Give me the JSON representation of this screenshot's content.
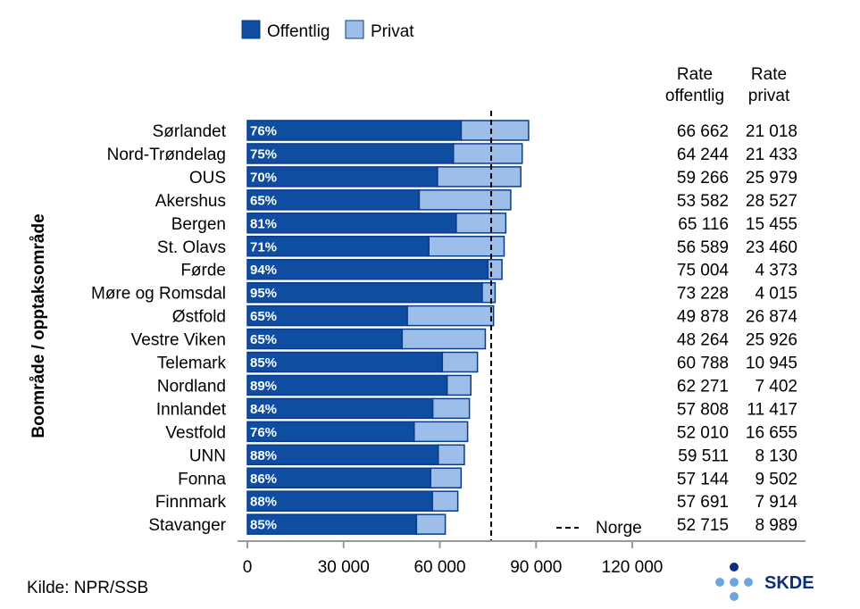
{
  "chart_data": {
    "type": "bar",
    "orientation": "horizontal",
    "stacked": true,
    "ylabel": "Boområde / opptaksområde",
    "source": "Kilde: NPR/SSB",
    "logo": "SKDE",
    "legend": {
      "position": "top",
      "entries": [
        "Offentlig",
        "Privat"
      ]
    },
    "colors": {
      "offentlig": "#0F4DA0",
      "privat": "#9DBEE8",
      "edge": "#0B3C8A"
    },
    "column_headers": {
      "offentlig": [
        "Rate",
        "offentlig"
      ],
      "privat": [
        "Rate",
        "privat"
      ]
    },
    "xlim": [
      0,
      130000
    ],
    "xticks": [
      "0",
      "30 000",
      "60 000",
      "90 000",
      "120 000"
    ],
    "xtick_values": [
      0,
      30000,
      60000,
      90000,
      120000
    ],
    "reference_line": {
      "label": "Norge",
      "value": 76000
    },
    "categories": [
      "Sørlandet",
      "Nord-Trøndelag",
      "OUS",
      "Akershus",
      "Bergen",
      "St. Olavs",
      "Førde",
      "Møre og Romsdal",
      "Østfold",
      "Vestre Viken",
      "Telemark",
      "Nordland",
      "Innlandet",
      "Vestfold",
      "UNN",
      "Fonna",
      "Finnmark",
      "Stavanger"
    ],
    "series": [
      {
        "name": "Offentlig",
        "values": [
          66662,
          64244,
          59266,
          53582,
          65116,
          56589,
          75004,
          73228,
          49878,
          48264,
          60788,
          62271,
          57808,
          52010,
          59511,
          57144,
          57691,
          52715
        ]
      },
      {
        "name": "Privat",
        "values": [
          21018,
          21433,
          25979,
          28527,
          15455,
          23460,
          4373,
          4015,
          26874,
          25926,
          10945,
          7402,
          11417,
          16655,
          8130,
          9502,
          7914,
          8989
        ]
      }
    ],
    "share_labels": [
      "76%",
      "75%",
      "70%",
      "65%",
      "81%",
      "71%",
      "94%",
      "95%",
      "65%",
      "65%",
      "85%",
      "89%",
      "84%",
      "76%",
      "88%",
      "86%",
      "88%",
      "85%"
    ],
    "rate_offentlig_labels": [
      "66 662",
      "64 244",
      "59 266",
      "53 582",
      "65 116",
      "56 589",
      "75 004",
      "73 228",
      "49 878",
      "48 264",
      "60 788",
      "62 271",
      "57 808",
      "52 010",
      "59 511",
      "57 144",
      "57 691",
      "52 715"
    ],
    "rate_privat_labels": [
      "21 018",
      "21 433",
      "25 979",
      "28 527",
      "15 455",
      "23 460",
      "4 373",
      "4 015",
      "26 874",
      "25 926",
      "10 945",
      "7 402",
      "11 417",
      "16 655",
      "8 130",
      "9 502",
      "7 914",
      "8 989"
    ]
  }
}
